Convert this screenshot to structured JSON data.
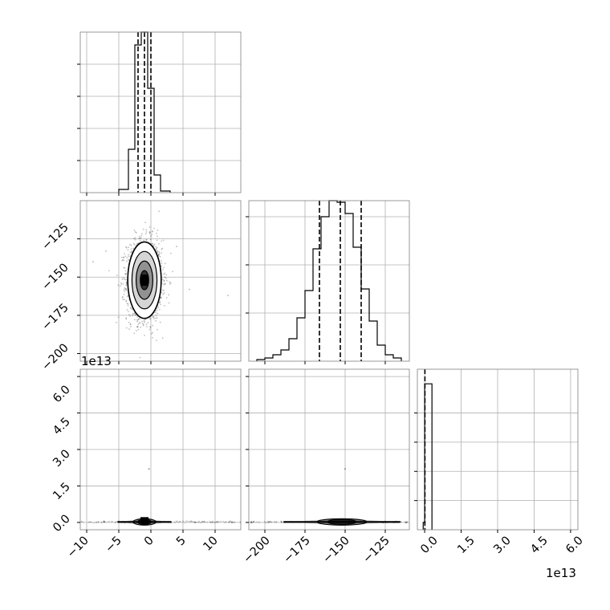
{
  "chart_data": {
    "type": "corner",
    "grid": true,
    "colors": {
      "line": "#000000",
      "grid": "#b0b0b0",
      "frame": "#000000",
      "points": "#000000"
    },
    "panels": [
      {
        "id": "hist_p0",
        "type": "histogram",
        "xlim": [
          -11,
          14
        ],
        "ylim": [
          0,
          1
        ],
        "grid_x": [
          -10,
          -5,
          0,
          5,
          10
        ],
        "grid_y": [
          0.2,
          0.4,
          0.6,
          0.8
        ],
        "bin_edges": [
          -5,
          -3.5,
          -2.5,
          -1.5,
          -0.5,
          0.5,
          1.5,
          3
        ],
        "counts": [
          0.02,
          0.27,
          0.92,
          1.0,
          0.65,
          0.11,
          0.01
        ],
        "quantiles": [
          -2.0,
          -1.0,
          0.0
        ]
      },
      {
        "id": "hist_p1",
        "type": "histogram",
        "xlim": [
          -210,
          -110
        ],
        "ylim": [
          0,
          1
        ],
        "grid_x": [
          -200,
          -175,
          -150,
          -125
        ],
        "grid_y": [
          0.3,
          0.6,
          0.9
        ],
        "bin_edges": [
          -205,
          -200,
          -195,
          -190,
          -185,
          -180,
          -175,
          -170,
          -165,
          -160,
          -155,
          -150,
          -145,
          -140,
          -135,
          -130,
          -125,
          -120,
          -115
        ],
        "counts": [
          0.01,
          0.02,
          0.04,
          0.07,
          0.14,
          0.27,
          0.44,
          0.7,
          0.9,
          1.0,
          0.99,
          0.92,
          0.71,
          0.45,
          0.25,
          0.1,
          0.04,
          0.02
        ],
        "quantiles": [
          -166,
          -153,
          -140
        ]
      },
      {
        "id": "hist_p2",
        "type": "histogram",
        "xlim": [
          -0.3,
          6.3
        ],
        "ylim": [
          0,
          1.1
        ],
        "grid_x": [
          0.0,
          1.5,
          3.0,
          4.5,
          6.0
        ],
        "grid_y": [
          0.2,
          0.4,
          0.6,
          0.8
        ],
        "bin_edges": [
          -0.06,
          0.0,
          0.3
        ],
        "counts": [
          0.05,
          1.0
        ],
        "quantiles": [
          0.01
        ],
        "x_ticks": [
          "0.0",
          "1.5",
          "3.0",
          "4.5",
          "6.0"
        ],
        "x_offset": "1e13"
      },
      {
        "id": "scatter_p0_p1",
        "type": "hist2d",
        "x_param": "p0",
        "y_param": "p1",
        "xlim": [
          -11,
          14
        ],
        "ylim": [
          -205,
          -100
        ],
        "grid_x": [
          -10,
          -5,
          0,
          5,
          10
        ],
        "grid_y": [
          -200,
          -175,
          -150,
          -125
        ],
        "center": [
          -1.0,
          -152
        ],
        "sigma": [
          1.3,
          12.5
        ],
        "y_ticks": [
          "−125",
          "−150",
          "−175",
          "−200"
        ]
      },
      {
        "id": "scatter_p0_p2",
        "type": "hist2d",
        "x_param": "p0",
        "y_param": "p2",
        "xlim": [
          -11,
          14
        ],
        "ylim": [
          -0.3,
          6.3
        ],
        "grid_x": [
          -10,
          -5,
          0,
          5,
          10
        ],
        "grid_y": [
          0.0,
          1.5,
          3.0,
          4.5,
          6.0
        ],
        "center": [
          -1.0,
          0.02
        ],
        "outlier": [
          -0.3,
          2.2
        ],
        "x_ticks": [
          "−10",
          "−5",
          "0",
          "5",
          "10"
        ],
        "y_ticks": [
          "6.0",
          "4.5",
          "3.0",
          "1.5",
          "0.0"
        ],
        "y_offset": "1e13"
      },
      {
        "id": "scatter_p1_p2",
        "type": "hist2d",
        "x_param": "p1",
        "y_param": "p2",
        "xlim": [
          -210,
          -110
        ],
        "ylim": [
          -0.3,
          6.3
        ],
        "grid_x": [
          -200,
          -175,
          -150,
          -125
        ],
        "grid_y": [
          0.0,
          1.5,
          3.0,
          4.5,
          6.0
        ],
        "center": [
          -152,
          0.02
        ],
        "outlier": [
          -150,
          2.2
        ],
        "x_ticks": [
          "−200",
          "−175",
          "−150",
          "−125"
        ]
      }
    ]
  }
}
